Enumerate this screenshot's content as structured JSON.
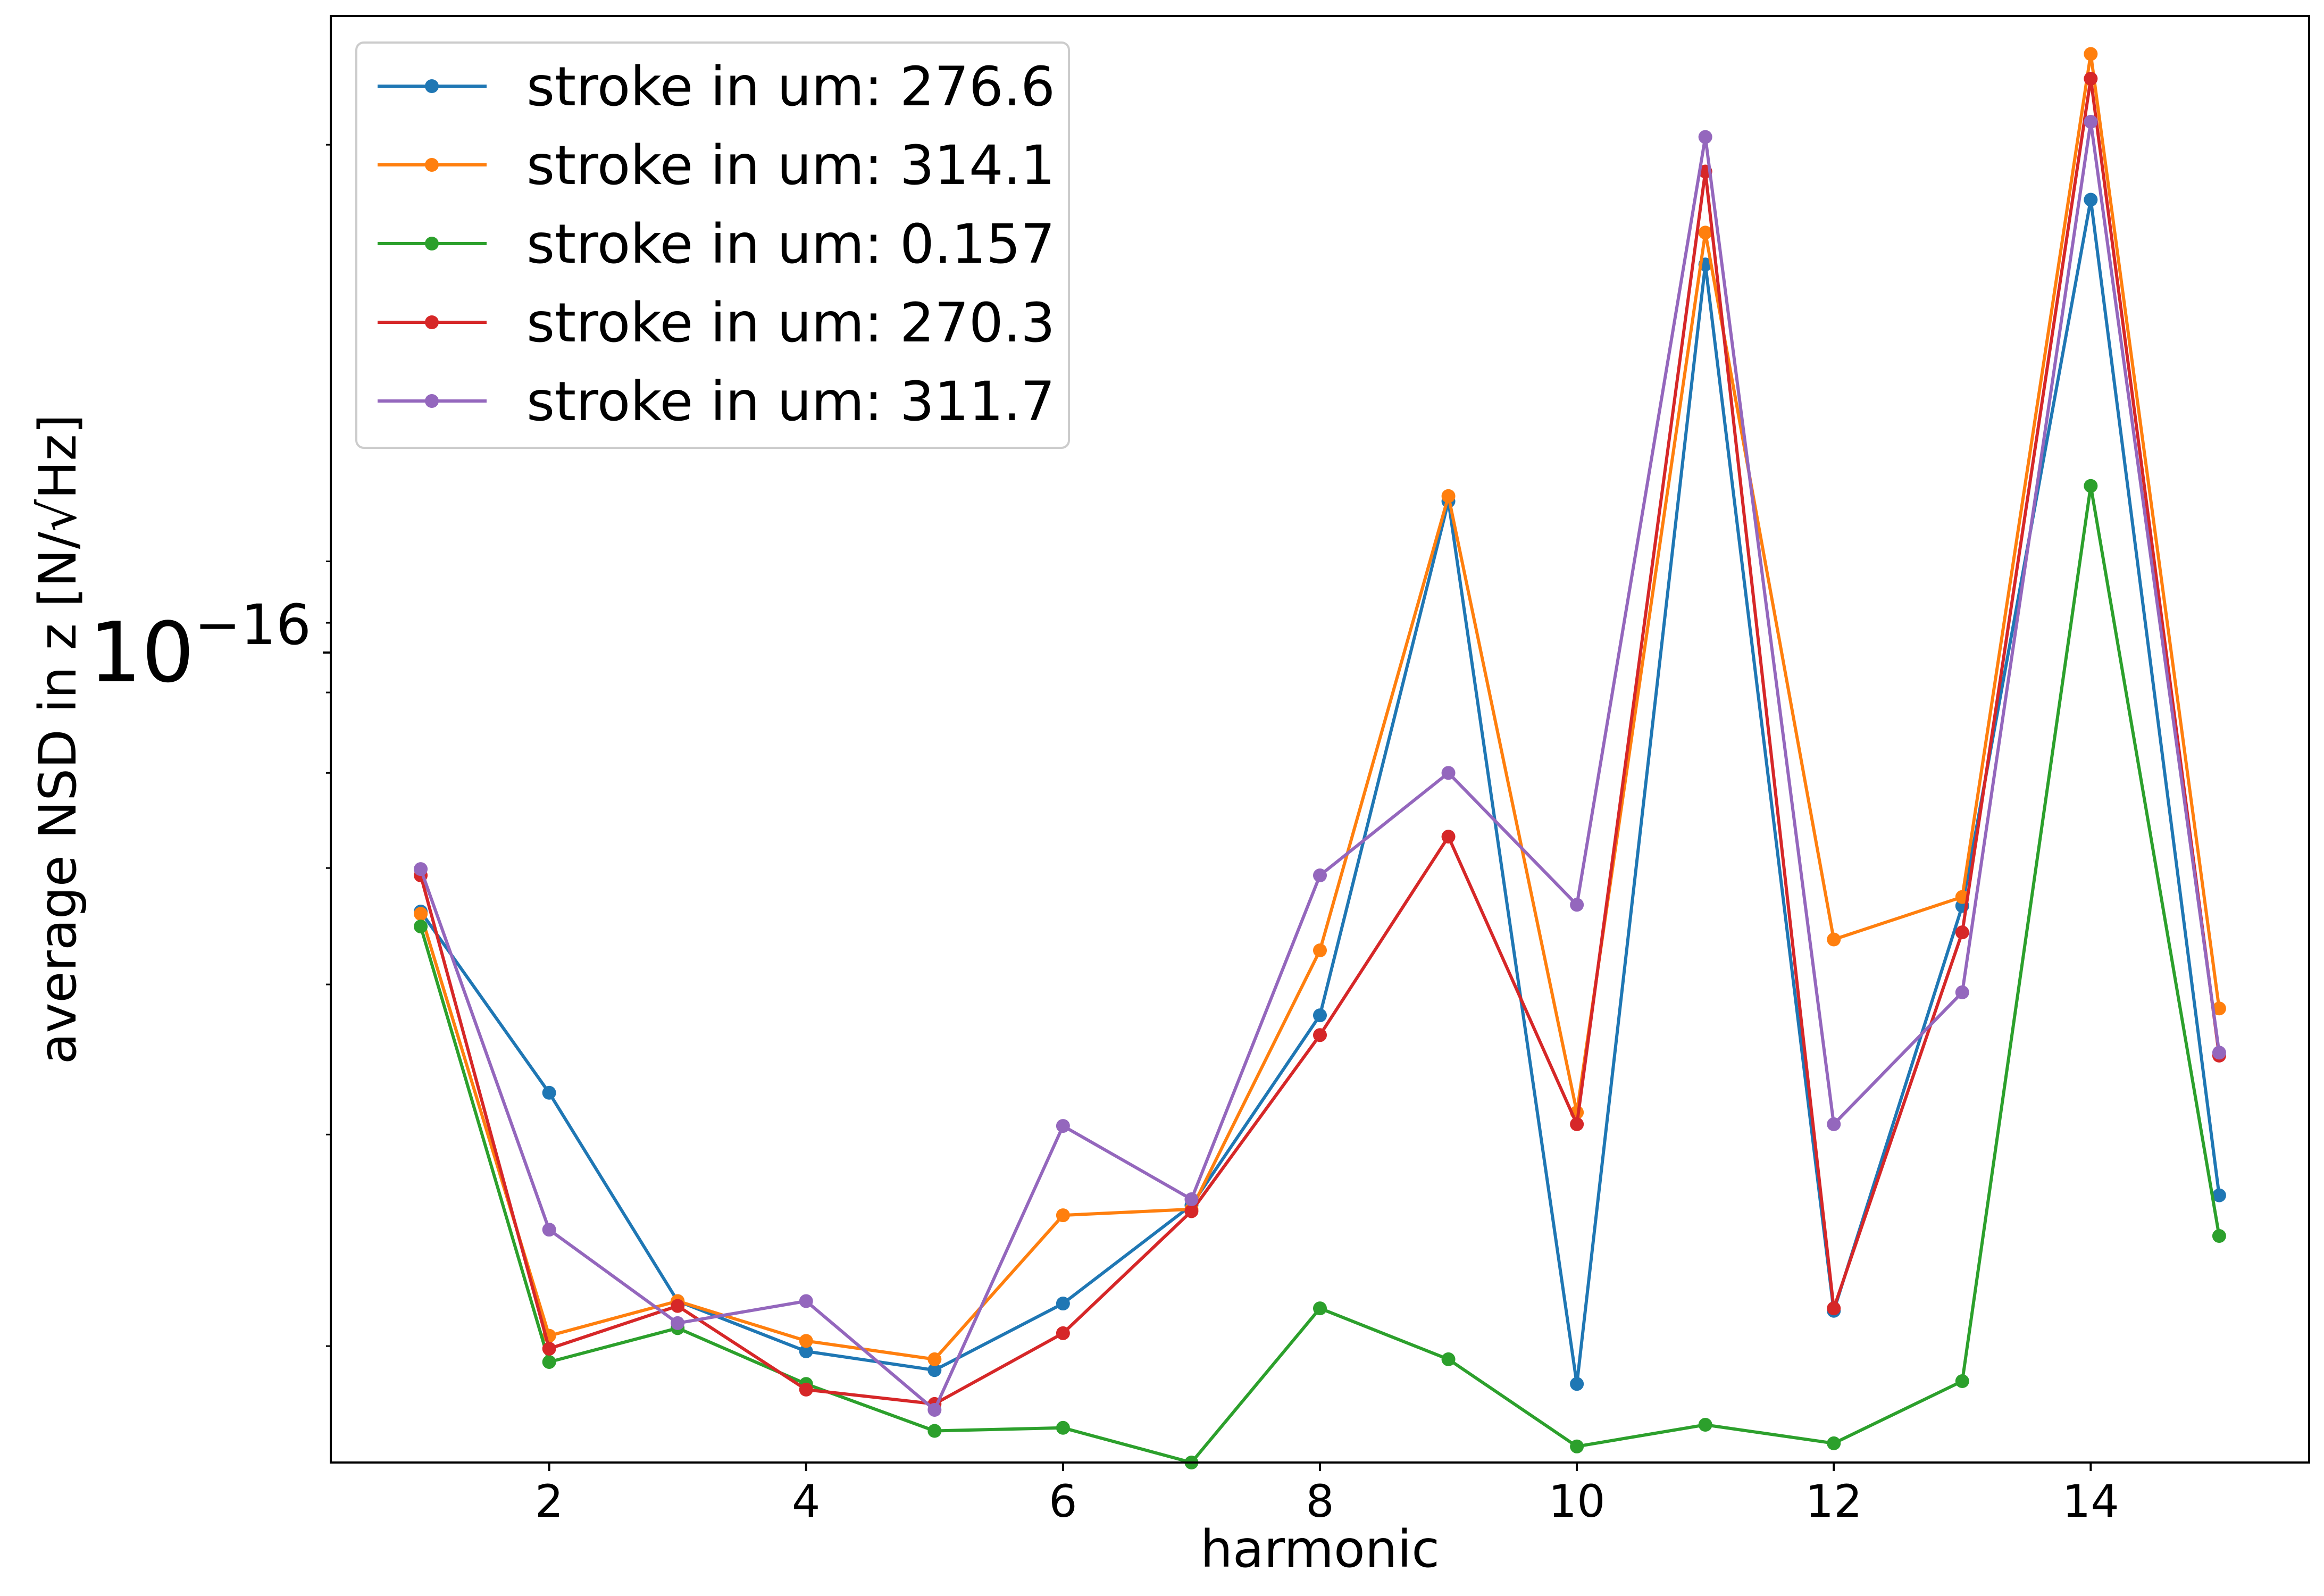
{
  "chart_data": {
    "type": "line",
    "xlabel": "harmonic",
    "ylabel": "average NSD in z [N/√Hz]",
    "y_scale": "log",
    "xlim": [
      0.3,
      15.7
    ],
    "ylim": [
      1.6e-17,
      2.56e-16
    ],
    "x_ticks": [
      2,
      4,
      6,
      8,
      10,
      12,
      14
    ],
    "y_major_tick": {
      "value": 1e-16,
      "label_base": "10",
      "label_exponent": "−16"
    },
    "y_minor_ticks": [
      2e-17,
      3e-17,
      4e-17,
      5e-17,
      6e-17,
      7e-17,
      8e-17,
      9e-17,
      2e-16
    ],
    "legend_position": "upper-left",
    "grid": false,
    "x": [
      1,
      2,
      3,
      4,
      5,
      6,
      7,
      8,
      9,
      10,
      11,
      12,
      13,
      14,
      15
    ],
    "series": [
      {
        "name": "stroke in um: 276.6",
        "color": "#1f77b4",
        "values": [
          4.6e-17,
          3.25e-17,
          2.18e-17,
          1.98e-17,
          1.91e-17,
          2.17e-17,
          2.62e-17,
          3.77e-17,
          1.01e-16,
          1.86e-17,
          1.59e-16,
          2.14e-17,
          4.65e-17,
          1.8e-16,
          2.67e-17
        ]
      },
      {
        "name": "stroke in um: 314.1",
        "color": "#ff7f0e",
        "values": [
          4.58e-17,
          2.04e-17,
          2.18e-17,
          2.02e-17,
          1.95e-17,
          2.57e-17,
          2.6e-17,
          4.27e-17,
          1.02e-16,
          3.13e-17,
          1.69e-16,
          4.36e-17,
          4.73e-17,
          2.38e-16,
          3.82e-17
        ]
      },
      {
        "name": "stroke in um: 0.157",
        "color": "#2ca02c",
        "values": [
          4.47e-17,
          1.94e-17,
          2.07e-17,
          1.86e-17,
          1.7e-17,
          1.71e-17,
          1.6e-17,
          2.15e-17,
          1.95e-17,
          1.65e-17,
          1.72e-17,
          1.66e-17,
          1.87e-17,
          1.04e-16,
          2.47e-17
        ]
      },
      {
        "name": "stroke in um: 270.3",
        "color": "#d62728",
        "values": [
          4.93e-17,
          1.99e-17,
          2.16e-17,
          1.84e-17,
          1.79e-17,
          2.05e-17,
          2.59e-17,
          3.63e-17,
          5.31e-17,
          3.06e-17,
          1.9e-16,
          2.15e-17,
          4.42e-17,
          2.27e-16,
          3.49e-17
        ]
      },
      {
        "name": "stroke in um: 311.7",
        "color": "#9467bd",
        "values": [
          4.99e-17,
          2.5e-17,
          2.09e-17,
          2.18e-17,
          1.77e-17,
          3.05e-17,
          2.65e-17,
          4.93e-17,
          6e-17,
          4.66e-17,
          2.03e-16,
          3.06e-17,
          3.94e-17,
          2.09e-16,
          3.51e-17
        ]
      }
    ]
  }
}
